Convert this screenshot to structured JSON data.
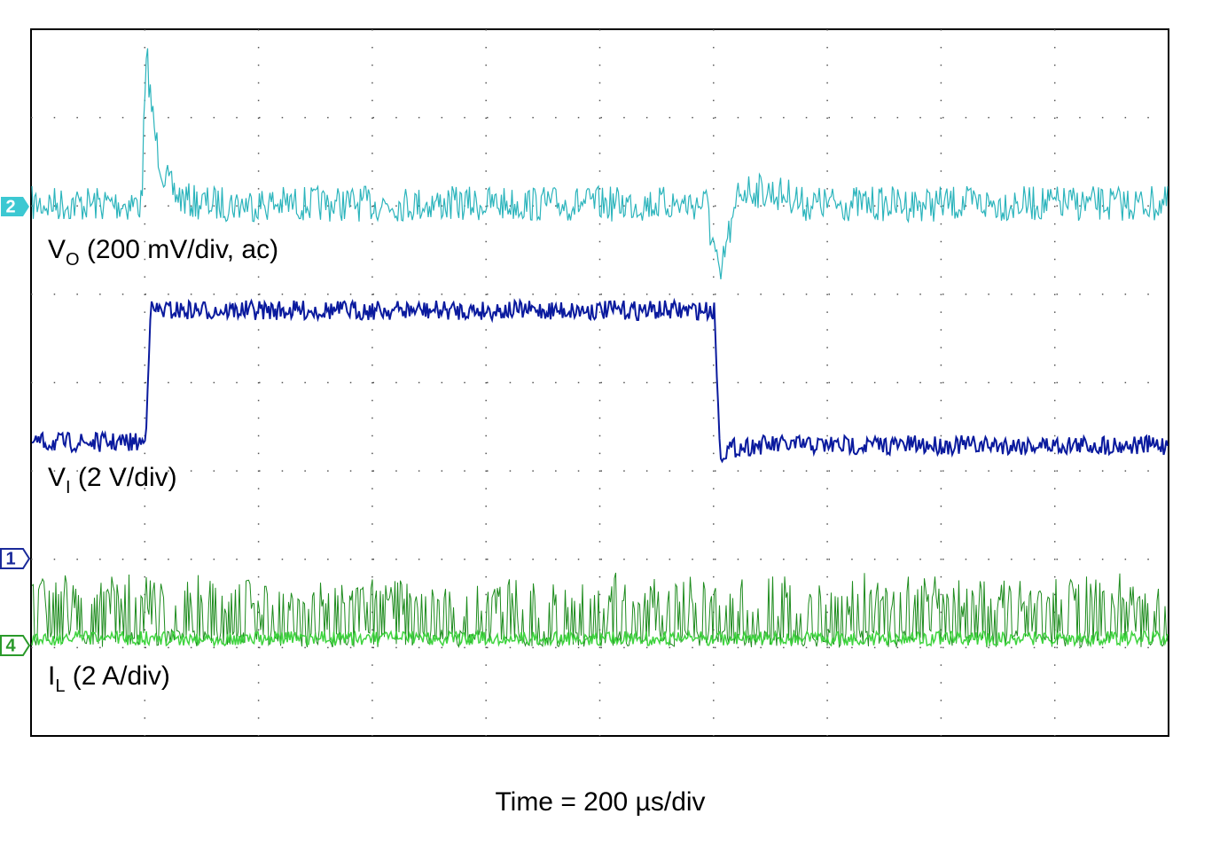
{
  "traces": [
    {
      "marker": "2",
      "label": "V",
      "sub": "O",
      "rest": " (200 mV/div, ac)"
    },
    {
      "marker": "1",
      "label": "V",
      "sub": "I",
      "rest": " (2 V/div)"
    },
    {
      "marker": "4",
      "label": "I",
      "sub": "L",
      "rest": " (2 A/div)"
    }
  ],
  "footer": "Time = 200 µs/div"
}
